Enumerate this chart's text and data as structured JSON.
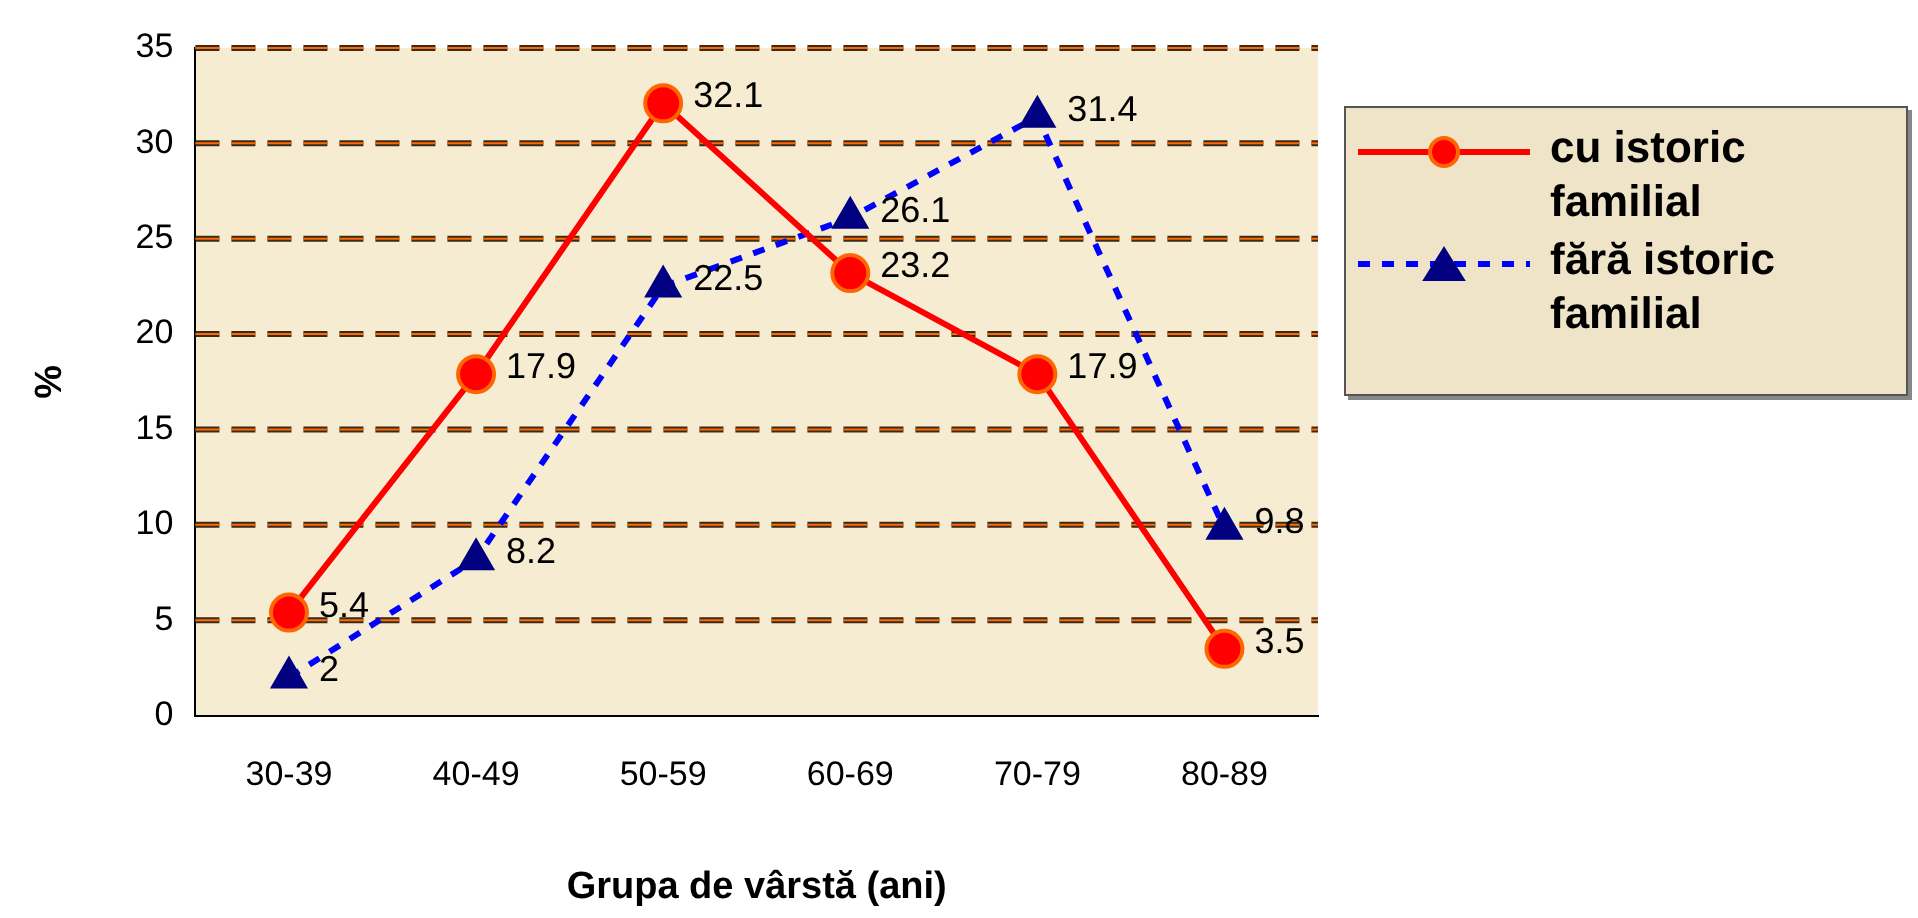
{
  "chart_data": {
    "type": "line",
    "xlabel": "Grupa de vârstă (ani)",
    "ylabel": "%",
    "categories": [
      "30-39",
      "40-49",
      "50-59",
      "60-69",
      "70-79",
      "80-89"
    ],
    "series": [
      {
        "name": "cu istoric familial",
        "color": "#ff0000",
        "values": [
          5.4,
          17.9,
          32.1,
          23.2,
          17.9,
          3.5
        ],
        "marker": "circle",
        "line_style": "solid"
      },
      {
        "name": "fără istoric familial",
        "color": "#0000ff",
        "values": [
          2,
          8.2,
          22.5,
          26.1,
          31.4,
          9.8
        ],
        "marker": "triangle",
        "line_style": "dashed"
      }
    ],
    "ylim": [
      0,
      35
    ],
    "yticks": [
      0,
      5,
      10,
      15,
      20,
      25,
      30,
      35
    ],
    "grid": "y",
    "legend": "right",
    "data_labels": true
  }
}
